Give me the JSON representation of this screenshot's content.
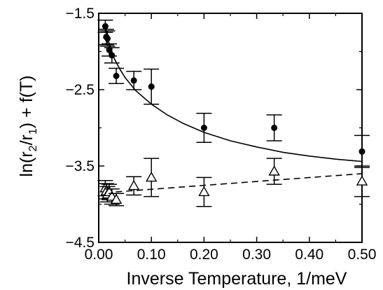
{
  "chart_data": {
    "type": "scatter",
    "title": "",
    "xlabel": "Inverse Temperature, 1/meV",
    "ylabel_parts": [
      "ln(r",
      "2",
      "/r",
      "1",
      ") + f(T)"
    ],
    "xlim": [
      0.0,
      0.5
    ],
    "ylim": [
      -4.5,
      -1.5
    ],
    "xticks": [
      0.0,
      0.1,
      0.2,
      0.3,
      0.4,
      0.5
    ],
    "xtick_labels": [
      "0.00",
      "0.10",
      "0.20",
      "0.30",
      "0.40",
      "0.50"
    ],
    "yticks": [
      -4.5,
      -3.5,
      -2.5,
      -1.5
    ],
    "ytick_labels": [
      "−4.5",
      "−3.5",
      "−2.5",
      "−1.5"
    ],
    "grid": false,
    "legend": "none",
    "series": [
      {
        "marker": "filled-circle",
        "points": [
          {
            "x": 0.0125,
            "y": -1.67,
            "err": 0.08
          },
          {
            "x": 0.0143,
            "y": -1.81,
            "err": 0.1
          },
          {
            "x": 0.0167,
            "y": -1.83,
            "err": 0.1
          },
          {
            "x": 0.02,
            "y": -1.98,
            "err": 0.08
          },
          {
            "x": 0.025,
            "y": -2.05,
            "err": 0.1
          },
          {
            "x": 0.0333,
            "y": -2.32,
            "err": 0.1
          },
          {
            "x": 0.0667,
            "y": -2.38,
            "err": 0.12
          },
          {
            "x": 0.1,
            "y": -2.46,
            "err": 0.23
          },
          {
            "x": 0.2,
            "y": -3.0,
            "err": 0.19
          },
          {
            "x": 0.3333,
            "y": -3.0,
            "err": 0.17
          },
          {
            "x": 0.5,
            "y": -3.31,
            "err": 0.21
          }
        ],
        "fit": {
          "style": "solid",
          "points": [
            {
              "x": 0.0125,
              "y": -1.67
            },
            {
              "x": 0.02,
              "y": -1.9
            },
            {
              "x": 0.03,
              "y": -2.1
            },
            {
              "x": 0.04,
              "y": -2.23
            },
            {
              "x": 0.05,
              "y": -2.34
            },
            {
              "x": 0.07,
              "y": -2.51
            },
            {
              "x": 0.1,
              "y": -2.69
            },
            {
              "x": 0.13,
              "y": -2.83
            },
            {
              "x": 0.16,
              "y": -2.94
            },
            {
              "x": 0.2,
              "y": -3.06
            },
            {
              "x": 0.25,
              "y": -3.17
            },
            {
              "x": 0.3,
              "y": -3.25
            },
            {
              "x": 0.35,
              "y": -3.32
            },
            {
              "x": 0.4,
              "y": -3.37
            },
            {
              "x": 0.45,
              "y": -3.41
            },
            {
              "x": 0.5,
              "y": -3.44
            }
          ]
        }
      },
      {
        "marker": "open-triangle",
        "points": [
          {
            "x": 0.0125,
            "y": -3.79,
            "err": 0.1
          },
          {
            "x": 0.0143,
            "y": -3.83,
            "err": 0.1
          },
          {
            "x": 0.0167,
            "y": -3.87,
            "err": 0.1
          },
          {
            "x": 0.02,
            "y": -3.84,
            "err": 0.1
          },
          {
            "x": 0.025,
            "y": -3.9,
            "err": 0.1
          },
          {
            "x": 0.0333,
            "y": -3.94,
            "err": 0.08
          },
          {
            "x": 0.0667,
            "y": -3.76,
            "err": 0.12
          },
          {
            "x": 0.1,
            "y": -3.65,
            "err": 0.25
          },
          {
            "x": 0.2,
            "y": -3.84,
            "err": 0.19
          },
          {
            "x": 0.3333,
            "y": -3.57,
            "err": 0.17
          },
          {
            "x": 0.5,
            "y": -3.7,
            "err": 0.2
          }
        ],
        "fit": {
          "style": "dashed",
          "points": [
            {
              "x": 0.0125,
              "y": -3.85
            },
            {
              "x": 0.5,
              "y": -3.6
            }
          ]
        }
      }
    ]
  }
}
